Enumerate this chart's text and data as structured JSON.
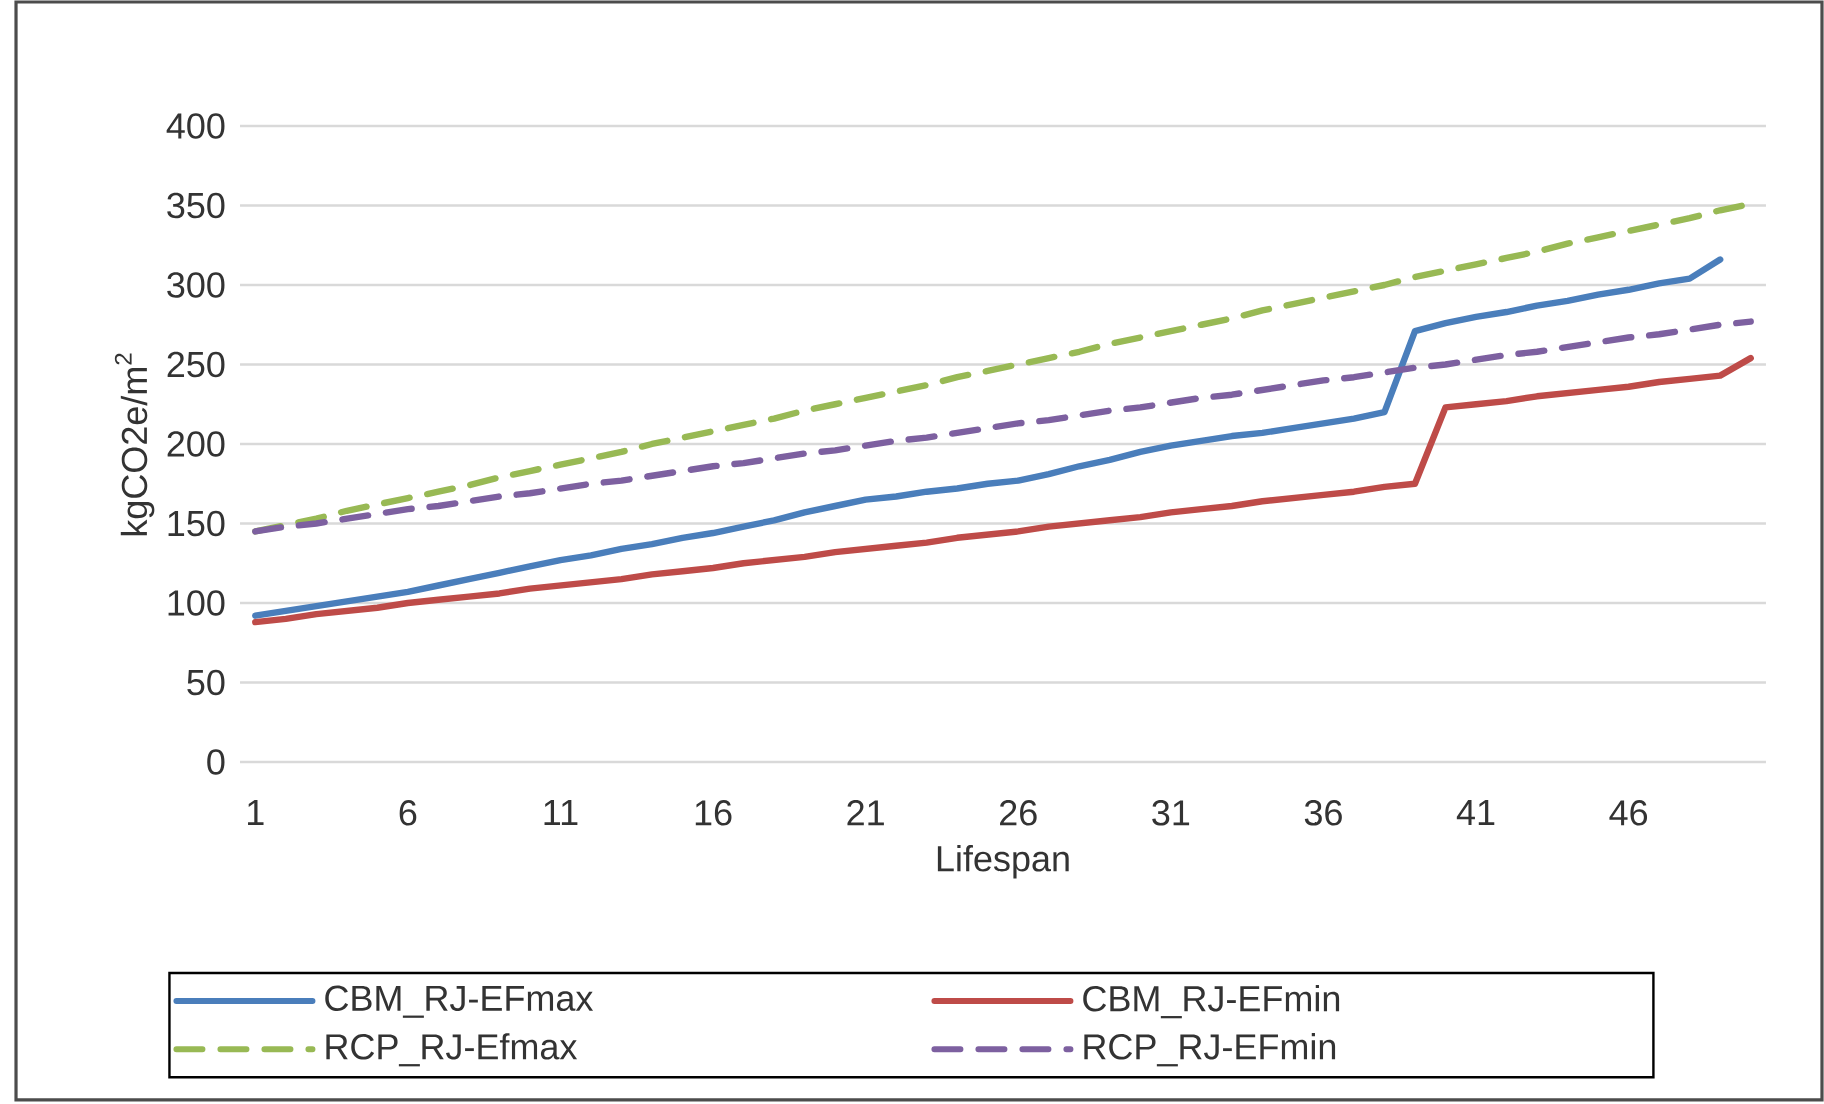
{
  "chart_data": {
    "type": "line",
    "xlabel": "Lifespan",
    "ylabel": "kgCO2e/m$^{2}$",
    "categories": [
      "1",
      null,
      null,
      null,
      null,
      "6",
      null,
      null,
      null,
      null,
      "11",
      null,
      null,
      null,
      null,
      "16",
      null,
      null,
      null,
      null,
      "21",
      null,
      null,
      null,
      null,
      "26",
      null,
      null,
      null,
      null,
      "31",
      null,
      null,
      null,
      null,
      "36",
      null,
      null,
      null,
      null,
      "41",
      null,
      null,
      null,
      null,
      "46",
      null,
      null,
      null,
      null
    ],
    "ylim": [
      0,
      400
    ],
    "yticks": [
      0,
      50,
      100,
      150,
      200,
      250,
      300,
      350,
      400
    ],
    "grid": "y",
    "legend": "bottom",
    "series": [
      {
        "name": "CBM_RJ-EFmax",
        "color": "#4a7ebb",
        "line_style": "solid",
        "values": [
          92,
          95,
          98,
          101,
          104,
          107,
          111,
          115,
          119,
          123,
          127,
          130,
          134,
          137,
          141,
          144,
          148,
          152,
          157,
          161,
          165,
          167,
          170,
          172,
          175,
          177,
          181,
          186,
          190,
          195,
          199,
          202,
          205,
          207,
          210,
          213,
          216,
          220,
          271,
          276,
          280,
          283,
          287,
          290,
          294,
          297,
          301,
          304,
          316,
          null
        ]
      },
      {
        "name": "CBM_RJ-EFmin",
        "color": "#be4b48",
        "line_style": "solid",
        "values": [
          88,
          90,
          93,
          95,
          97,
          100,
          102,
          104,
          106,
          109,
          111,
          113,
          115,
          118,
          120,
          122,
          125,
          127,
          129,
          132,
          134,
          136,
          138,
          141,
          143,
          145,
          148,
          150,
          152,
          154,
          157,
          159,
          161,
          164,
          166,
          168,
          170,
          173,
          175,
          223,
          225,
          227,
          230,
          232,
          234,
          236,
          239,
          241,
          243,
          254
        ]
      },
      {
        "name": "RCP_RJ-Efmax",
        "color": "#98b954",
        "line_style": "dashed",
        "values": [
          145,
          149,
          153,
          158,
          162,
          166,
          170,
          174,
          179,
          183,
          187,
          191,
          195,
          200,
          204,
          208,
          212,
          216,
          221,
          225,
          229,
          233,
          237,
          242,
          246,
          250,
          254,
          258,
          263,
          267,
          271,
          275,
          279,
          284,
          288,
          292,
          296,
          300,
          305,
          309,
          313,
          317,
          321,
          326,
          330,
          334,
          338,
          342,
          347,
          351
        ]
      },
      {
        "name": "RCP_RJ-EFmin",
        "color": "#7d60a0",
        "line_style": "dashed",
        "values": [
          145,
          148,
          150,
          153,
          156,
          159,
          161,
          164,
          167,
          169,
          172,
          175,
          177,
          180,
          183,
          186,
          188,
          191,
          194,
          196,
          199,
          202,
          204,
          207,
          210,
          213,
          215,
          218,
          221,
          223,
          226,
          229,
          231,
          234,
          237,
          240,
          242,
          245,
          248,
          250,
          253,
          256,
          258,
          261,
          264,
          267,
          269,
          272,
          275,
          277
        ]
      }
    ]
  }
}
